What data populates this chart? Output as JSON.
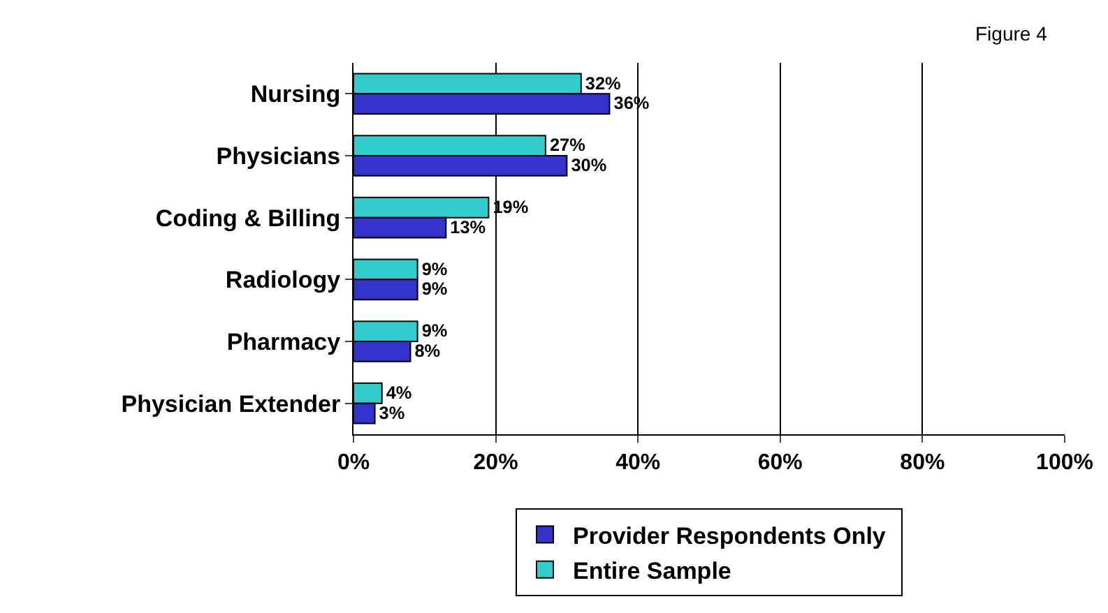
{
  "chart_data": {
    "type": "bar",
    "orientation": "horizontal",
    "categories": [
      "Nursing",
      "Physicians",
      "Coding & Billing",
      "Radiology",
      "Pharmacy",
      "Physician Extender"
    ],
    "series": [
      {
        "name": "Provider Respondents Only",
        "color": "#3333cc",
        "values": [
          36,
          30,
          13,
          9,
          8,
          3
        ],
        "value_labels": [
          "36%",
          "30%",
          "13%",
          "9%",
          "8%",
          "3%"
        ]
      },
      {
        "name": "Entire Sample",
        "color": "#33cccc",
        "values": [
          32,
          27,
          19,
          9,
          9,
          4
        ],
        "value_labels": [
          "32%",
          "27%",
          "19%",
          "9%",
          "9%",
          "4%"
        ]
      }
    ],
    "xlim": [
      0,
      100
    ],
    "xticks": [
      {
        "value": 0,
        "label": "0%"
      },
      {
        "value": 20,
        "label": "20%"
      },
      {
        "value": 40,
        "label": "40%"
      },
      {
        "value": 60,
        "label": "60%"
      },
      {
        "value": 80,
        "label": "80%"
      },
      {
        "value": 100,
        "label": "100%"
      }
    ],
    "grid": "x",
    "legend": "bottom",
    "annotations": [
      "Figure 4"
    ]
  }
}
